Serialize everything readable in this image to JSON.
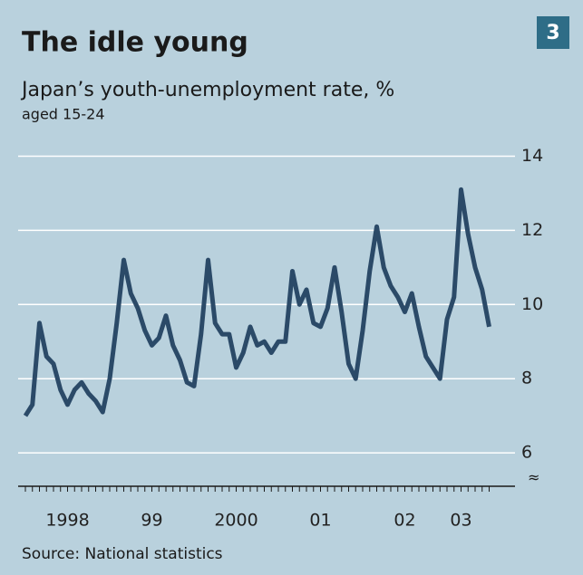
{
  "badge": "3",
  "chart_data": {
    "type": "line",
    "title": "The idle young",
    "subtitle": "Japan’s youth-unemployment rate, %",
    "note": "aged 15-24",
    "source": "Source: National statistics",
    "categories": [
      null,
      null,
      null,
      null,
      null,
      null,
      "1998",
      null,
      null,
      null,
      null,
      null,
      null,
      null,
      null,
      null,
      null,
      null,
      "99",
      null,
      null,
      null,
      null,
      null,
      null,
      null,
      null,
      null,
      null,
      null,
      "2000",
      null,
      null,
      null,
      null,
      null,
      null,
      null,
      null,
      null,
      null,
      null,
      "01",
      null,
      null,
      null,
      null,
      null,
      null,
      null,
      null,
      null,
      null,
      null,
      "02",
      null,
      null,
      null,
      null,
      null,
      null,
      null,
      "03",
      null,
      null,
      null,
      null
    ],
    "series": [
      {
        "name": "Youth unemployment",
        "color": "#2b4a68",
        "values": [
          7.0,
          7.3,
          9.5,
          8.6,
          8.4,
          7.7,
          7.3,
          7.7,
          7.9,
          7.6,
          7.4,
          7.1,
          8.0,
          9.5,
          11.2,
          10.3,
          9.9,
          9.3,
          8.9,
          9.1,
          9.7,
          8.9,
          8.5,
          7.9,
          7.8,
          9.2,
          11.2,
          9.5,
          9.2,
          9.2,
          8.3,
          8.7,
          9.4,
          8.9,
          9.0,
          8.7,
          9.0,
          9.0,
          10.9,
          10.0,
          10.4,
          9.5,
          9.4,
          9.9,
          11.0,
          9.8,
          8.4,
          8.0,
          9.3,
          10.9,
          12.1,
          11.0,
          10.5,
          10.2,
          9.8,
          10.3,
          9.4,
          8.6,
          8.3,
          8.0,
          9.6,
          10.2,
          13.1,
          11.9,
          11.0,
          10.4,
          9.4
        ]
      }
    ],
    "ylim": [
      5.1,
      14.5
    ],
    "yticks": [
      6,
      8,
      10,
      12,
      14
    ],
    "grid": true
  }
}
